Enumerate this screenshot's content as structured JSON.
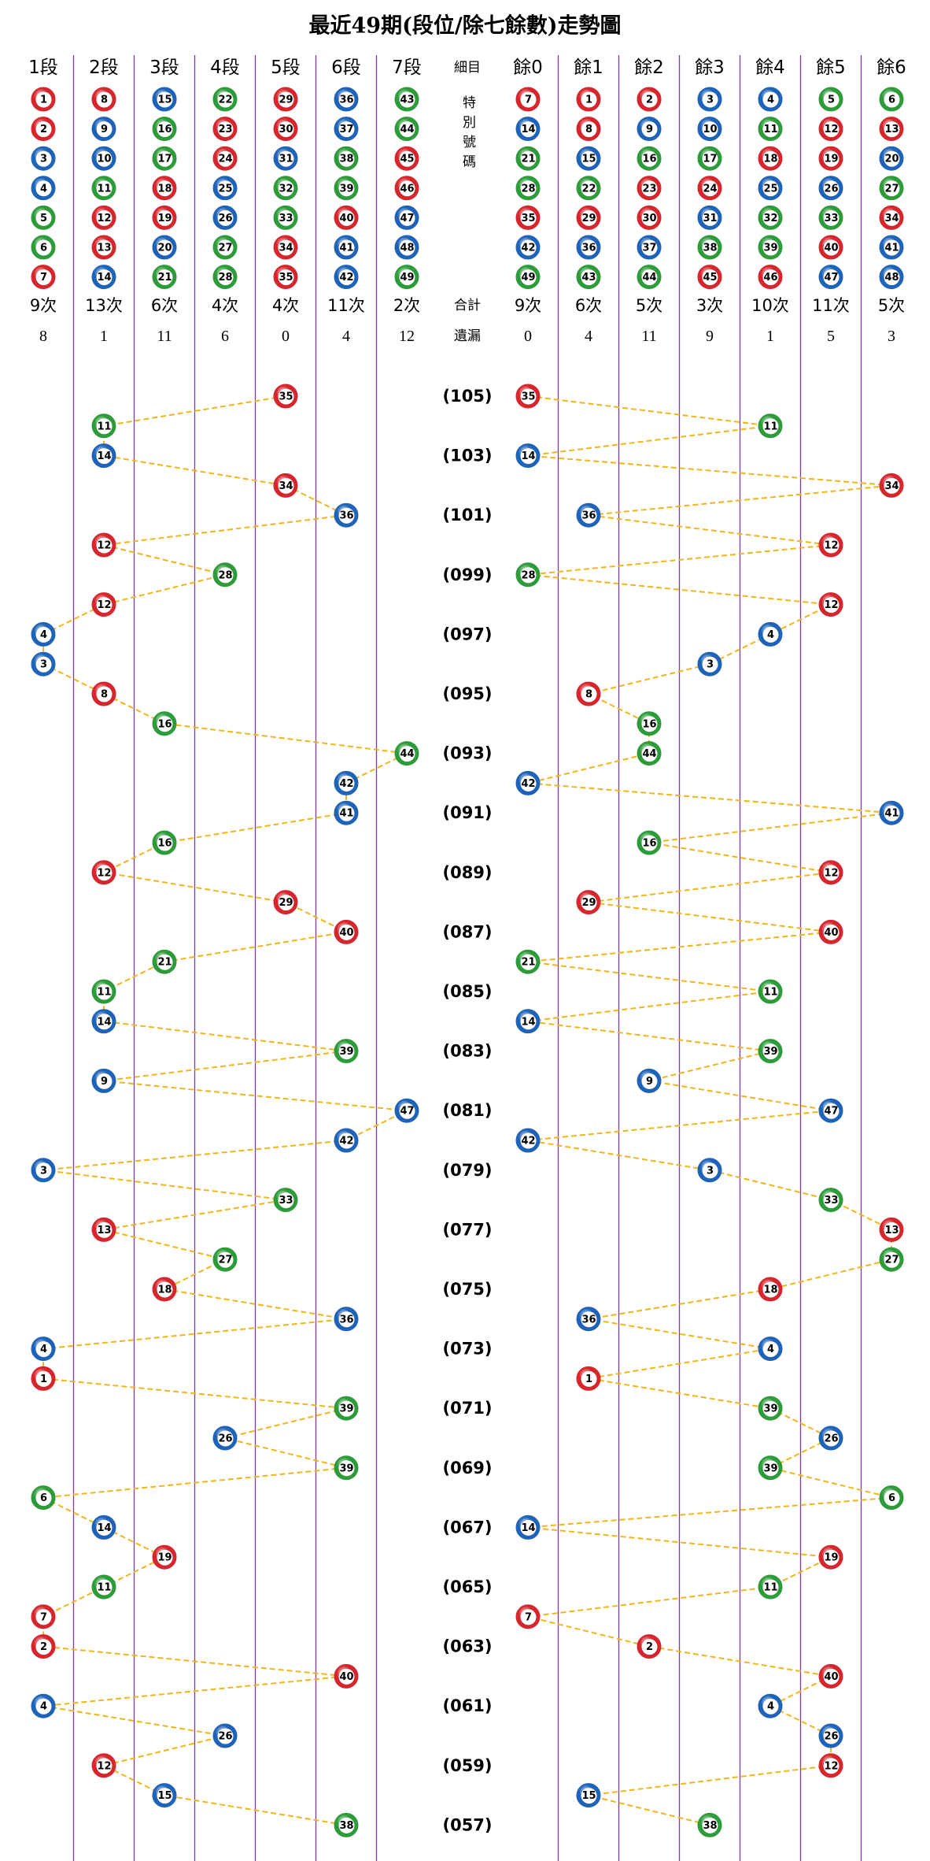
{
  "title": "最近49期(段位/除七餘數)走勢圖",
  "middle_column": {
    "header": "細目",
    "special_label": "特別號碼",
    "total_label": "合計",
    "miss_label": "遺漏"
  },
  "segment_columns": [
    {
      "header": "1段",
      "numbers": [
        1,
        2,
        3,
        4,
        5,
        6,
        7
      ],
      "count": "9次",
      "miss": 8
    },
    {
      "header": "2段",
      "numbers": [
        8,
        9,
        10,
        11,
        12,
        13,
        14
      ],
      "count": "13次",
      "miss": 1
    },
    {
      "header": "3段",
      "numbers": [
        15,
        16,
        17,
        18,
        19,
        20,
        21
      ],
      "count": "6次",
      "miss": 11
    },
    {
      "header": "4段",
      "numbers": [
        22,
        23,
        24,
        25,
        26,
        27,
        28
      ],
      "count": "4次",
      "miss": 6
    },
    {
      "header": "5段",
      "numbers": [
        29,
        30,
        31,
        32,
        33,
        34,
        35
      ],
      "count": "4次",
      "miss": 0
    },
    {
      "header": "6段",
      "numbers": [
        36,
        37,
        38,
        39,
        40,
        41,
        42
      ],
      "count": "11次",
      "miss": 4
    },
    {
      "header": "7段",
      "numbers": [
        43,
        44,
        45,
        46,
        47,
        48,
        49
      ],
      "count": "2次",
      "miss": 12
    }
  ],
  "remainder_columns": [
    {
      "header": "餘0",
      "numbers": [
        7,
        14,
        21,
        28,
        35,
        42,
        49
      ],
      "count": "9次",
      "miss": 0
    },
    {
      "header": "餘1",
      "numbers": [
        1,
        8,
        15,
        22,
        29,
        36,
        43
      ],
      "count": "6次",
      "miss": 4
    },
    {
      "header": "餘2",
      "numbers": [
        2,
        9,
        16,
        23,
        30,
        37,
        44
      ],
      "count": "5次",
      "miss": 11
    },
    {
      "header": "餘3",
      "numbers": [
        3,
        10,
        17,
        24,
        31,
        38,
        45
      ],
      "count": "3次",
      "miss": 9
    },
    {
      "header": "餘4",
      "numbers": [
        4,
        11,
        18,
        25,
        32,
        39,
        46
      ],
      "count": "10次",
      "miss": 1
    },
    {
      "header": "餘5",
      "numbers": [
        5,
        12,
        19,
        26,
        33,
        40,
        47
      ],
      "count": "11次",
      "miss": 5
    },
    {
      "header": "餘6",
      "numbers": [
        6,
        13,
        20,
        27,
        34,
        41,
        48
      ],
      "count": "5次",
      "miss": 3
    }
  ],
  "draws": [
    {
      "period": "(105)",
      "number": 35
    },
    {
      "period": null,
      "number": 11
    },
    {
      "period": "(103)",
      "number": 14
    },
    {
      "period": null,
      "number": 34
    },
    {
      "period": "(101)",
      "number": 36
    },
    {
      "period": null,
      "number": 12
    },
    {
      "period": "(099)",
      "number": 28
    },
    {
      "period": null,
      "number": 12
    },
    {
      "period": "(097)",
      "number": 4
    },
    {
      "period": null,
      "number": 3
    },
    {
      "period": "(095)",
      "number": 8
    },
    {
      "period": null,
      "number": 16
    },
    {
      "period": "(093)",
      "number": 44
    },
    {
      "period": null,
      "number": 42
    },
    {
      "period": "(091)",
      "number": 41
    },
    {
      "period": null,
      "number": 16
    },
    {
      "period": "(089)",
      "number": 12
    },
    {
      "period": null,
      "number": 29
    },
    {
      "period": "(087)",
      "number": 40
    },
    {
      "period": null,
      "number": 21
    },
    {
      "period": "(085)",
      "number": 11
    },
    {
      "period": null,
      "number": 14
    },
    {
      "period": "(083)",
      "number": 39
    },
    {
      "period": null,
      "number": 9
    },
    {
      "period": "(081)",
      "number": 47
    },
    {
      "period": null,
      "number": 42
    },
    {
      "period": "(079)",
      "number": 3
    },
    {
      "period": null,
      "number": 33
    },
    {
      "period": "(077)",
      "number": 13
    },
    {
      "period": null,
      "number": 27
    },
    {
      "period": "(075)",
      "number": 18
    },
    {
      "period": null,
      "number": 36
    },
    {
      "period": "(073)",
      "number": 4
    },
    {
      "period": null,
      "number": 1
    },
    {
      "period": "(071)",
      "number": 39
    },
    {
      "period": null,
      "number": 26
    },
    {
      "period": "(069)",
      "number": 39
    },
    {
      "period": null,
      "number": 6
    },
    {
      "period": "(067)",
      "number": 14
    },
    {
      "period": null,
      "number": 19
    },
    {
      "period": "(065)",
      "number": 11
    },
    {
      "period": null,
      "number": 7
    },
    {
      "period": "(063)",
      "number": 2
    },
    {
      "period": null,
      "number": 40
    },
    {
      "period": "(061)",
      "number": 4
    },
    {
      "period": null,
      "number": 26
    },
    {
      "period": "(059)",
      "number": 12
    },
    {
      "period": null,
      "number": 15
    },
    {
      "period": "(057)",
      "number": 38
    }
  ],
  "ball_colors": [
    {
      "color": "#d6262d",
      "numbers": [
        1,
        2,
        7,
        8,
        12,
        13,
        18,
        19,
        23,
        24,
        29,
        30,
        34,
        35,
        40,
        45,
        46
      ]
    },
    {
      "color": "#1f63b8",
      "numbers": [
        3,
        4,
        9,
        10,
        14,
        15,
        20,
        25,
        26,
        31,
        36,
        37,
        41,
        42,
        47,
        48
      ]
    },
    {
      "color": "#2e9b3a",
      "numbers": [
        5,
        6,
        11,
        16,
        17,
        21,
        22,
        27,
        28,
        32,
        33,
        38,
        39,
        43,
        44,
        49
      ]
    }
  ],
  "line_color": "#f2b51c",
  "divider_color": "#7a3aa8"
}
